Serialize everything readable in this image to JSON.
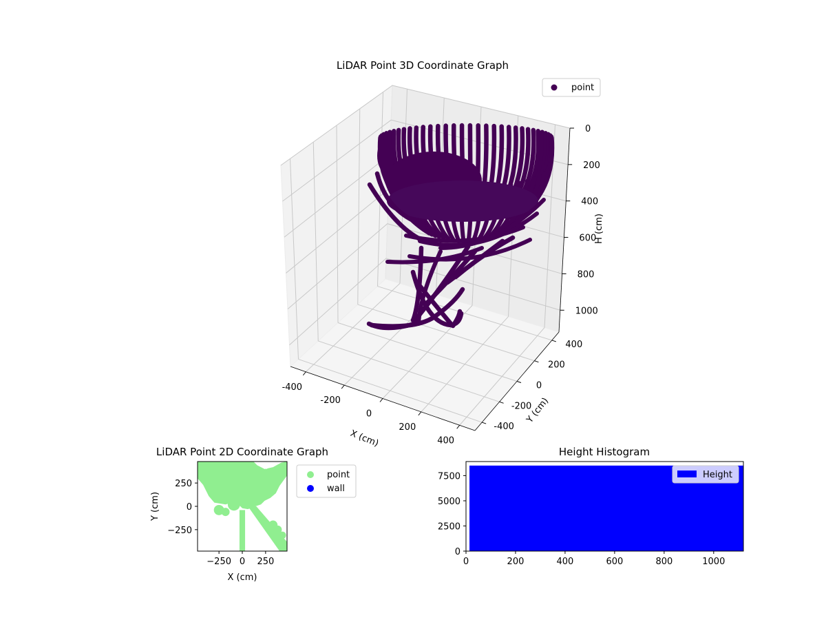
{
  "chart_data": [
    {
      "type": "scatter3d",
      "title": "LiDAR Point 3D Coordinate Graph",
      "xlabel": "X (cm)",
      "ylabel": "Y (cm)",
      "zlabel": "H (cm)",
      "xlim": [
        -480,
        480
      ],
      "ylim": [
        -480,
        480
      ],
      "zlim": [
        1120,
        0
      ],
      "x_ticks": [
        -400,
        -200,
        0,
        200,
        400
      ],
      "y_ticks": [
        -400,
        -200,
        0,
        200,
        400
      ],
      "z_ticks": [
        0,
        200,
        400,
        600,
        800,
        1000
      ],
      "legend": {
        "entries": [
          "point"
        ],
        "placement": "upper-right"
      },
      "grid": true,
      "series": [
        {
          "name": "point",
          "color": "#440154",
          "description_shape": "dome of curved scan lines",
          "rim_height": 0,
          "lowest_height": 1000
        }
      ]
    },
    {
      "type": "scatter",
      "title": "LiDAR Point 2D Coordinate Graph",
      "xlabel": "X (cm)",
      "ylabel": "Y (cm)",
      "xlim": [
        -480,
        480
      ],
      "ylim": [
        -480,
        480
      ],
      "x_ticks": [
        -250,
        0,
        250
      ],
      "y_ticks": [
        -250,
        0,
        250
      ],
      "legend": {
        "entries": [
          "point",
          "wall"
        ],
        "placement": "outside-right"
      },
      "series": [
        {
          "name": "point",
          "color": "#90ee90"
        },
        {
          "name": "wall",
          "color": "#0000ff"
        }
      ]
    },
    {
      "type": "bar",
      "title": "Height Histogram",
      "xlim": [
        0,
        1120
      ],
      "ylim": [
        0,
        8900
      ],
      "x_ticks": [
        0,
        200,
        400,
        600,
        800,
        1000
      ],
      "y_ticks": [
        0,
        2500,
        5000,
        7500
      ],
      "legend": {
        "entries": [
          "Height"
        ],
        "placement": "upper-right"
      },
      "series": [
        {
          "name": "Height",
          "color": "#0000ff",
          "x_start": 14,
          "x_end": 1120,
          "value": 8500
        }
      ]
    }
  ]
}
